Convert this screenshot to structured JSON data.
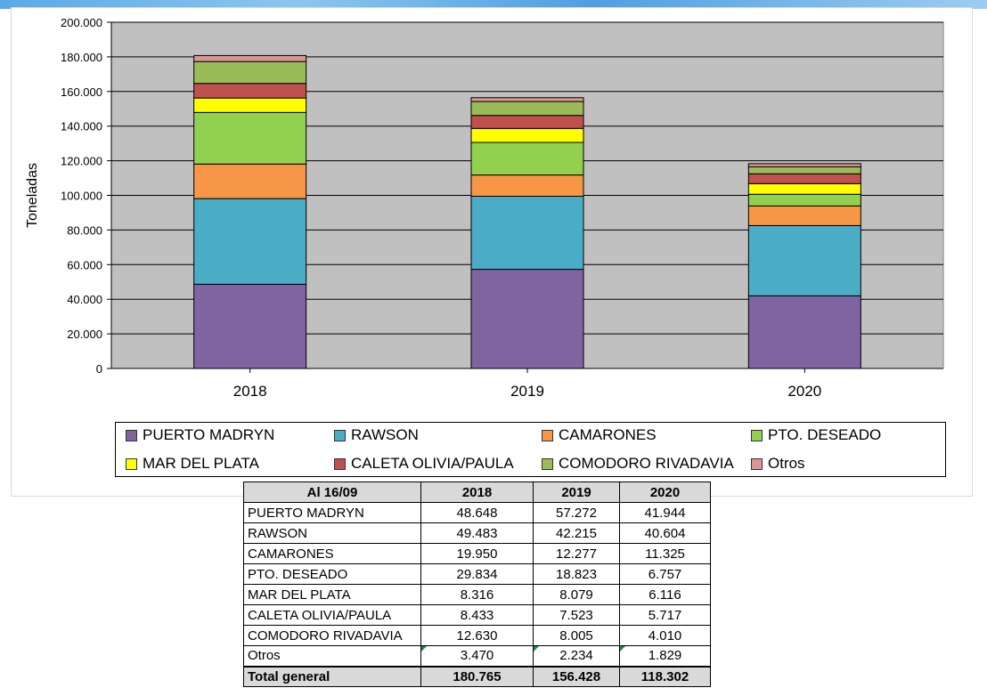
{
  "chart_data": {
    "type": "bar",
    "stacked": true,
    "categories": [
      "2018",
      "2019",
      "2020"
    ],
    "ylabel": "Toneladas",
    "ylim": [
      0,
      200000
    ],
    "yticks": [
      "0",
      "20.000",
      "40.000",
      "60.000",
      "80.000",
      "100.000",
      "120.000",
      "140.000",
      "160.000",
      "180.000",
      "200.000"
    ],
    "grid": true,
    "legend_position": "bottom",
    "series": [
      {
        "name": "PUERTO MADRYN",
        "color": "#8064a2",
        "values": [
          48648,
          57272,
          41944
        ]
      },
      {
        "name": "RAWSON",
        "color": "#4bacc6",
        "values": [
          49483,
          42215,
          40604
        ]
      },
      {
        "name": "CAMARONES",
        "color": "#f79646",
        "values": [
          19950,
          12277,
          11325
        ]
      },
      {
        "name": "PTO. DESEADO",
        "color": "#92d050",
        "values": [
          29834,
          18823,
          6757
        ]
      },
      {
        "name": "MAR DEL PLATA",
        "color": "#ffff00",
        "values": [
          8316,
          8079,
          6116
        ]
      },
      {
        "name": "CALETA OLIVIA/PAULA",
        "color": "#c0504d",
        "values": [
          8433,
          7523,
          5717
        ]
      },
      {
        "name": "COMODORO RIVADAVIA",
        "color": "#9bbb59",
        "values": [
          12630,
          8005,
          4010
        ]
      },
      {
        "name": "Otros",
        "color": "#d99694",
        "values": [
          3470,
          2234,
          1829
        ]
      }
    ]
  },
  "table": {
    "header": [
      "Al 16/09",
      "2018",
      "2019",
      "2020"
    ],
    "rows": [
      {
        "label": "PUERTO MADRYN",
        "values": [
          "48.648",
          "57.272",
          "41.944"
        ]
      },
      {
        "label": "RAWSON",
        "values": [
          "49.483",
          "42.215",
          "40.604"
        ]
      },
      {
        "label": "CAMARONES",
        "values": [
          "19.950",
          "12.277",
          "11.325"
        ]
      },
      {
        "label": "PTO. DESEADO",
        "values": [
          "29.834",
          "18.823",
          "6.757"
        ]
      },
      {
        "label": "MAR DEL PLATA",
        "values": [
          "8.316",
          "8.079",
          "6.116"
        ]
      },
      {
        "label": "CALETA OLIVIA/PAULA",
        "values": [
          "8.433",
          "7.523",
          "5.717"
        ]
      },
      {
        "label": "COMODORO RIVADAVIA",
        "values": [
          "12.630",
          "8.005",
          "4.010"
        ]
      },
      {
        "label": "Otros",
        "values": [
          "3.470",
          "2.234",
          "1.829"
        ]
      }
    ],
    "total": {
      "label": "Total general",
      "values": [
        "180.765",
        "156.428",
        "118.302"
      ]
    }
  }
}
